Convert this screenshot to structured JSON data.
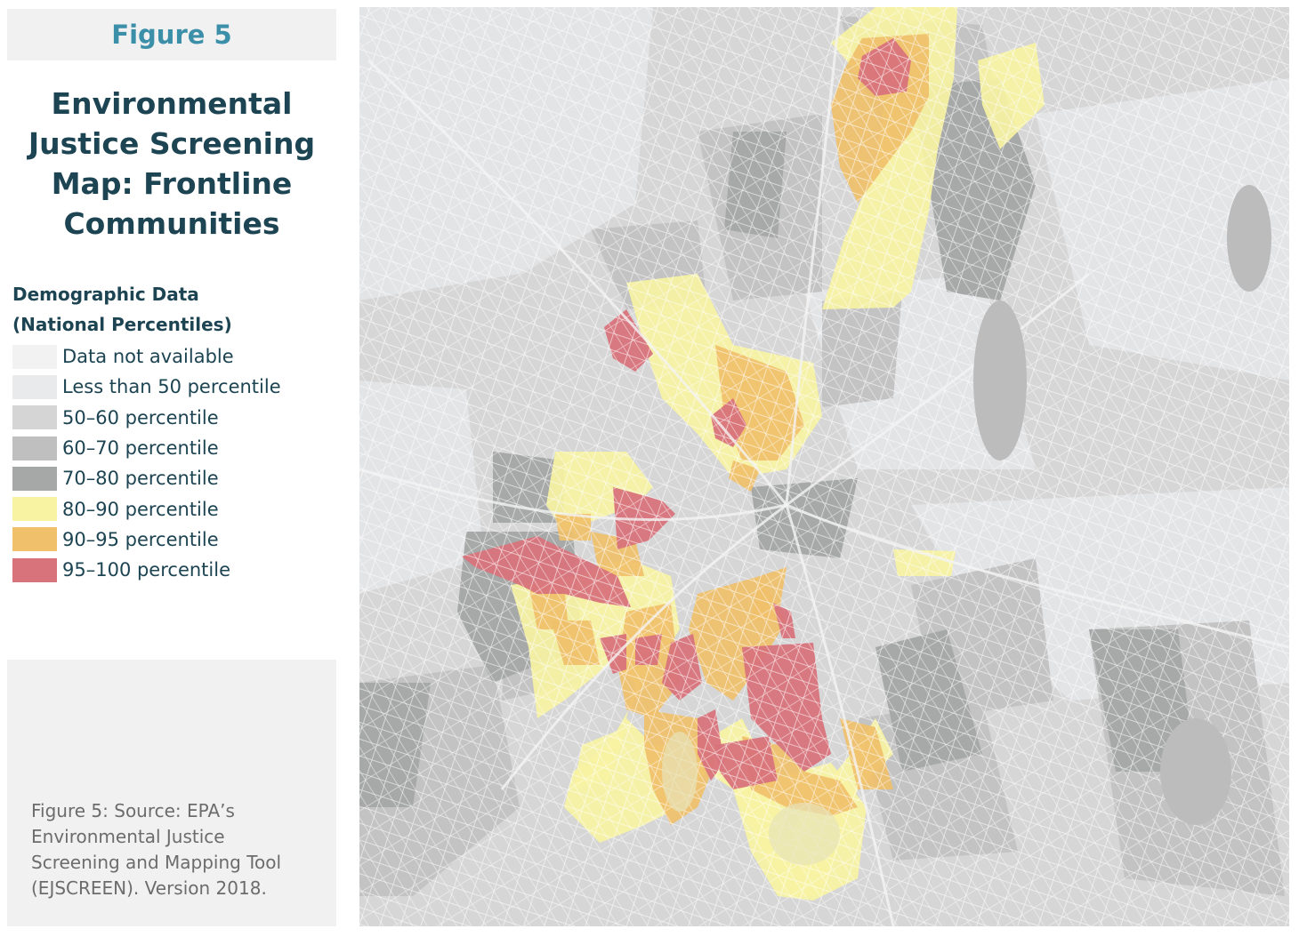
{
  "figure_label": "Figure 5",
  "title": "Environmental Justice Screening Map: Frontline Communities",
  "legend": {
    "title_line1": "Demographic Data",
    "title_line2": "(National Percentiles)",
    "items": [
      {
        "label": "Data not available",
        "color": "#f2f2f2"
      },
      {
        "label": "Less than 50 percentile",
        "color": "#e9eaec"
      },
      {
        "label": "50–60 percentile",
        "color": "#d5d5d5"
      },
      {
        "label": "60–70 percentile",
        "color": "#bfbfbf"
      },
      {
        "label": "70–80 percentile",
        "color": "#a6a7a7"
      },
      {
        "label": "80–90 percentile",
        "color": "#f7f3a3"
      },
      {
        "label": "90–95 percentile",
        "color": "#f0c06a"
      },
      {
        "label": "95–100 percentile",
        "color": "#d8737b"
      }
    ]
  },
  "source": "Figure 5: Source: EPA’s Environmental Justice Screening and Mapping Tool (EJSCREEN). Version 2018."
}
